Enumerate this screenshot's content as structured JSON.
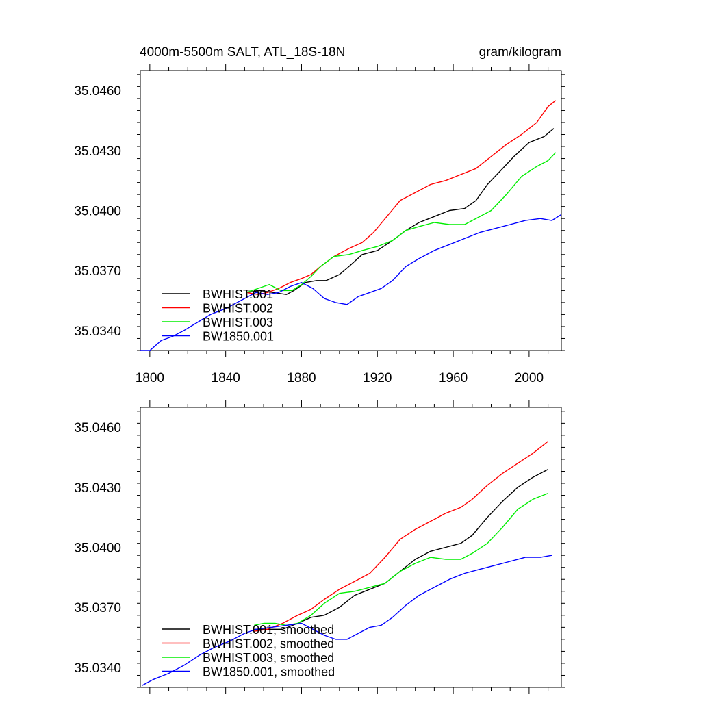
{
  "figure": {
    "title_left": "4000m-5500m SALT, ATL_18S-18N",
    "title_right": "gram/kilogram"
  },
  "chart_data": [
    {
      "type": "line",
      "panel": "top",
      "title": "4000m-5500m SALT, ATL_18S-18N",
      "units": "gram/kilogram",
      "xlim": [
        1795,
        2017
      ],
      "ylim": [
        35.033,
        35.047
      ],
      "xticks": [
        1800,
        1840,
        1880,
        1920,
        1960,
        2000
      ],
      "xtick_labels": [
        "1800",
        "1840",
        "1880",
        "1920",
        "1960",
        "2000"
      ],
      "yticks": [
        35.034,
        35.037,
        35.04,
        35.043,
        35.046
      ],
      "ytick_labels": [
        "35.0340",
        "35.0370",
        "35.0400",
        "35.0430",
        "35.0460"
      ],
      "show_xtick_labels": true,
      "legend_position": "bottom-left",
      "series": [
        {
          "name": "BWHIST.001",
          "color": "#000000",
          "x": [
            1851,
            1858,
            1865,
            1872,
            1876,
            1882,
            1888,
            1893,
            1900,
            1905,
            1912,
            1920,
            1928,
            1935,
            1942,
            1950,
            1958,
            1966,
            1972,
            1978,
            1985,
            1992,
            2000,
            2008,
            2013
          ],
          "y": [
            35.0359,
            35.036,
            35.0359,
            35.0358,
            35.036,
            35.0364,
            35.0365,
            35.0365,
            35.0368,
            35.0372,
            35.0378,
            35.038,
            35.0385,
            35.039,
            35.0394,
            35.0397,
            35.04,
            35.0401,
            35.0405,
            35.0413,
            35.042,
            35.0427,
            35.0434,
            35.0437,
            35.0441
          ]
        },
        {
          "name": "BWHIST.002",
          "color": "#ff0000",
          "x": [
            1851,
            1857,
            1862,
            1868,
            1874,
            1880,
            1885,
            1890,
            1897,
            1905,
            1912,
            1918,
            1925,
            1932,
            1940,
            1948,
            1956,
            1964,
            1972,
            1980,
            1988,
            1996,
            2004,
            2010,
            2014
          ],
          "y": [
            35.0359,
            35.0358,
            35.0359,
            35.0361,
            35.0364,
            35.0366,
            35.0368,
            35.0372,
            35.0377,
            35.0381,
            35.0384,
            35.0389,
            35.0397,
            35.0405,
            35.0409,
            35.0413,
            35.0415,
            35.0418,
            35.0421,
            35.0427,
            35.0433,
            35.0438,
            35.0444,
            35.0452,
            35.0455
          ]
        },
        {
          "name": "BWHIST.003",
          "color": "#00ee00",
          "x": [
            1851,
            1857,
            1863,
            1869,
            1875,
            1880,
            1885,
            1890,
            1897,
            1905,
            1912,
            1920,
            1928,
            1935,
            1942,
            1950,
            1958,
            1966,
            1972,
            1980,
            1988,
            1996,
            2004,
            2010,
            2014
          ],
          "y": [
            35.0359,
            35.0361,
            35.0363,
            35.036,
            35.036,
            35.0363,
            35.0367,
            35.0372,
            35.0377,
            35.0378,
            35.038,
            35.0382,
            35.0385,
            35.039,
            35.0392,
            35.0394,
            35.0393,
            35.0393,
            35.0396,
            35.04,
            35.0408,
            35.0417,
            35.0422,
            35.0425,
            35.0429
          ]
        },
        {
          "name": "BW1850.001",
          "color": "#0000ff",
          "x": [
            1795,
            1800,
            1806,
            1812,
            1818,
            1825,
            1832,
            1840,
            1848,
            1856,
            1862,
            1868,
            1874,
            1880,
            1886,
            1892,
            1898,
            1904,
            1910,
            1916,
            1922,
            1928,
            1935,
            1942,
            1950,
            1958,
            1966,
            1974,
            1982,
            1990,
            1998,
            2006,
            2012,
            2017
          ],
          "y": [
            35.033,
            35.033,
            35.0335,
            35.0337,
            35.034,
            35.0344,
            35.0348,
            35.0351,
            35.0355,
            35.0359,
            35.0358,
            35.0359,
            35.0362,
            35.0364,
            35.0361,
            35.0356,
            35.0354,
            35.0353,
            35.0357,
            35.0359,
            35.0361,
            35.0365,
            35.0372,
            35.0376,
            35.038,
            35.0383,
            35.0386,
            35.0389,
            35.0391,
            35.0393,
            35.0395,
            35.0396,
            35.0395,
            35.0398
          ]
        }
      ]
    },
    {
      "type": "line",
      "panel": "bottom",
      "title": "",
      "xlim": [
        1795,
        2017
      ],
      "ylim": [
        35.033,
        35.047
      ],
      "xticks": [
        1800,
        1840,
        1880,
        1920,
        1960,
        2000
      ],
      "yticks": [
        35.034,
        35.037,
        35.04,
        35.043,
        35.046
      ],
      "ytick_labels": [
        "35.0340",
        "35.0370",
        "35.0400",
        "35.0430",
        "35.0460"
      ],
      "show_xtick_labels": false,
      "legend_position": "bottom-left",
      "series": [
        {
          "name": "BWHIST.001, smoothed",
          "color": "#000000",
          "x": [
            1855,
            1862,
            1870,
            1878,
            1885,
            1892,
            1900,
            1908,
            1916,
            1924,
            1932,
            1940,
            1948,
            1956,
            1964,
            1970,
            1978,
            1986,
            1994,
            2002,
            2010
          ],
          "y": [
            35.0359,
            35.0359,
            35.0359,
            35.0362,
            35.0365,
            35.0366,
            35.037,
            35.0376,
            35.0379,
            35.0382,
            35.0388,
            35.0394,
            35.0398,
            35.04,
            35.0402,
            35.0406,
            35.0415,
            35.0423,
            35.043,
            35.0435,
            35.0439
          ]
        },
        {
          "name": "BWHIST.002, smoothed",
          "color": "#ff0000",
          "x": [
            1855,
            1862,
            1870,
            1878,
            1885,
            1892,
            1900,
            1908,
            1916,
            1924,
            1932,
            1940,
            1948,
            1956,
            1964,
            1970,
            1978,
            1986,
            1994,
            2002,
            2010
          ],
          "y": [
            35.0358,
            35.0359,
            35.0362,
            35.0366,
            35.0369,
            35.0374,
            35.0379,
            35.0383,
            35.0387,
            35.0395,
            35.0404,
            35.0409,
            35.0413,
            35.0417,
            35.042,
            35.0424,
            35.0431,
            35.0437,
            35.0442,
            35.0447,
            35.0453
          ]
        },
        {
          "name": "BWHIST.003, smoothed",
          "color": "#00ee00",
          "x": [
            1855,
            1860,
            1866,
            1872,
            1878,
            1885,
            1892,
            1900,
            1908,
            1916,
            1924,
            1932,
            1940,
            1948,
            1956,
            1964,
            1970,
            1978,
            1986,
            1994,
            2002,
            2010
          ],
          "y": [
            35.0361,
            35.0362,
            35.0362,
            35.0361,
            35.0362,
            35.0366,
            35.0372,
            35.0377,
            35.0378,
            35.038,
            35.0382,
            35.0388,
            35.0392,
            35.0395,
            35.0394,
            35.0394,
            35.0397,
            35.0402,
            35.041,
            35.0419,
            35.0424,
            35.0427
          ]
        },
        {
          "name": "BW1850.001, smoothed",
          "color": "#0000ff",
          "x": [
            1796,
            1802,
            1810,
            1818,
            1826,
            1834,
            1842,
            1850,
            1856,
            1864,
            1872,
            1880,
            1886,
            1892,
            1898,
            1904,
            1910,
            1916,
            1922,
            1928,
            1935,
            1942,
            1950,
            1958,
            1966,
            1974,
            1982,
            1990,
            1998,
            2006,
            2012
          ],
          "y": [
            35.0331,
            35.0334,
            35.0337,
            35.0341,
            35.0346,
            35.035,
            35.0353,
            35.0357,
            35.0359,
            35.036,
            35.0361,
            35.0362,
            35.0359,
            35.0356,
            35.0354,
            35.0354,
            35.0357,
            35.036,
            35.0361,
            35.0365,
            35.0371,
            35.0376,
            35.038,
            35.0384,
            35.0387,
            35.0389,
            35.0391,
            35.0393,
            35.0395,
            35.0395,
            35.0396
          ]
        }
      ]
    }
  ]
}
